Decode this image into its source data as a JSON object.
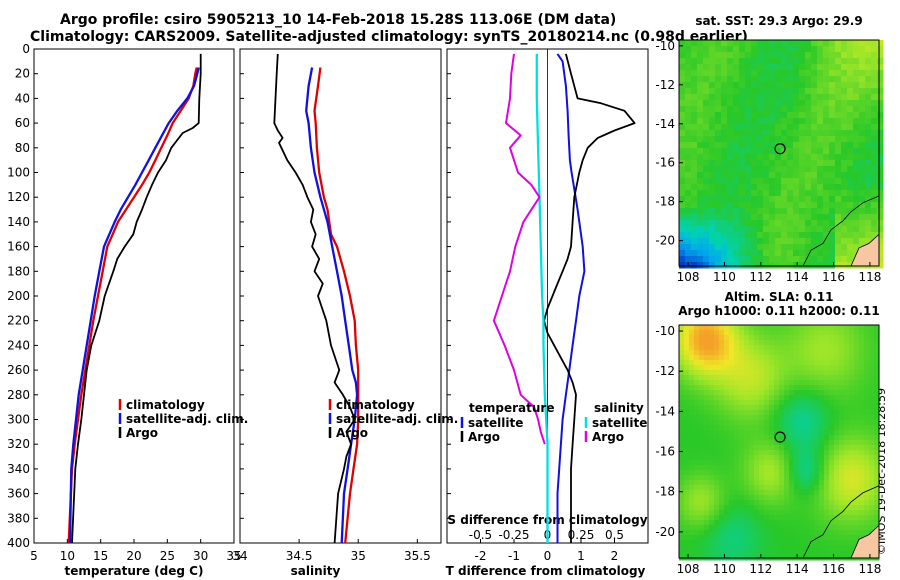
{
  "title": {
    "line1": "Argo profile: csiro 5905213_10 14-Feb-2018 15.28S 113.06E (DM data)",
    "line2": "Climatology: CARS2009. Satellite-adjusted climatology: synTS_20180214.nc (0.98d earlier)"
  },
  "watermark": "©IMOS 19-Dec-2018 18:28:59",
  "colors": {
    "climatology": "#e00000",
    "satellite": "#1010e0",
    "argo": "#000000",
    "s_satellite": "#00e0e0",
    "s_argo": "#e000e0"
  },
  "chart_data": [
    {
      "id": "temperature",
      "type": "line",
      "xlabel": "temperature (deg C)",
      "xlim": [
        5,
        35
      ],
      "xticks": [
        "5",
        "10",
        "15",
        "20",
        "25",
        "30",
        "35"
      ],
      "xtick_values": [
        5,
        10,
        15,
        20,
        25,
        30,
        35
      ],
      "ylim": [
        0,
        400
      ],
      "yticks": [
        "0",
        "20",
        "40",
        "60",
        "80",
        "100",
        "120",
        "140",
        "160",
        "180",
        "200",
        "220",
        "240",
        "260",
        "280",
        "300",
        "320",
        "340",
        "360",
        "380",
        "400"
      ],
      "ytick_values": [
        0,
        20,
        40,
        60,
        80,
        100,
        120,
        140,
        160,
        180,
        200,
        220,
        240,
        260,
        280,
        300,
        320,
        340,
        360,
        380,
        400
      ],
      "legend": {
        "position": "lower-right",
        "entries": [
          "climatology",
          "satellite-adj. clim.",
          "Argo"
        ]
      },
      "series": [
        {
          "name": "climatology",
          "color": "#e00000",
          "x": [
            29.4,
            29.2,
            28.9,
            28.2,
            27.0,
            25.8,
            25.0,
            24.1,
            23.2,
            22.3,
            21.2,
            20.0,
            18.8,
            17.6,
            16.8,
            16.0,
            15.3,
            14.6,
            13.9,
            13.3,
            12.7,
            12.1,
            11.6,
            11.1,
            10.7,
            10.2
          ],
          "y": [
            15,
            20,
            30,
            40,
            50,
            60,
            70,
            80,
            90,
            100,
            110,
            120,
            130,
            140,
            150,
            160,
            180,
            200,
            220,
            240,
            260,
            280,
            300,
            320,
            340,
            400
          ]
        },
        {
          "name": "satellite-adj. clim.",
          "color": "#1010e0",
          "x": [
            29.7,
            29.5,
            29.0,
            28.0,
            26.5,
            25.2,
            24.2,
            23.2,
            22.2,
            21.2,
            20.2,
            19.1,
            18.0,
            17.1,
            16.3,
            15.5,
            14.8,
            14.1,
            13.5,
            12.9,
            12.3,
            11.7,
            11.3,
            10.9,
            10.6,
            10.4
          ],
          "y": [
            15,
            20,
            30,
            40,
            50,
            60,
            70,
            80,
            90,
            100,
            110,
            120,
            130,
            140,
            150,
            160,
            180,
            200,
            220,
            240,
            260,
            280,
            300,
            320,
            340,
            400
          ]
        },
        {
          "name": "Argo",
          "color": "#000000",
          "x": [
            30.0,
            30.0,
            29.8,
            29.7,
            28.8,
            27.3,
            25.6,
            24.8,
            23.6,
            22.7,
            21.9,
            21.2,
            20.4,
            19.9,
            18.6,
            17.5,
            16.9,
            15.6,
            14.8,
            13.6,
            12.9,
            12.5,
            12.1,
            11.6,
            11.2,
            10.7
          ],
          "y": [
            4,
            20,
            40,
            60,
            64,
            68,
            80,
            90,
            100,
            110,
            120,
            130,
            140,
            150,
            160,
            170,
            180,
            200,
            220,
            240,
            260,
            280,
            300,
            320,
            340,
            400
          ]
        }
      ]
    },
    {
      "id": "salinity",
      "type": "line",
      "xlabel": "salinity",
      "xlim": [
        34,
        35.7
      ],
      "xticks": [
        "34",
        "34.5",
        "35",
        "35.5"
      ],
      "xtick_values": [
        34,
        34.5,
        35,
        35.5
      ],
      "ylim": [
        0,
        400
      ],
      "legend": {
        "position": "lower-right",
        "entries": [
          "climatology",
          "satellite-adj. clim.",
          "Argo"
        ]
      },
      "series": [
        {
          "name": "climatology",
          "color": "#e00000",
          "x": [
            34.68,
            34.66,
            34.63,
            34.64,
            34.65,
            34.67,
            34.71,
            34.74,
            34.77,
            34.82,
            34.88,
            34.93,
            34.97,
            34.98,
            35.0,
            35.0,
            35.0,
            34.99,
            34.96,
            34.93,
            34.89
          ],
          "y": [
            15,
            30,
            50,
            60,
            80,
            100,
            120,
            130,
            150,
            160,
            180,
            200,
            220,
            240,
            260,
            280,
            300,
            320,
            340,
            360,
            400
          ]
        },
        {
          "name": "satellite-adj. clim.",
          "color": "#1010e0",
          "x": [
            34.61,
            34.58,
            34.56,
            34.58,
            34.6,
            34.63,
            34.68,
            34.74,
            34.78,
            34.82,
            34.86,
            34.89,
            34.92,
            34.95,
            34.98,
            34.99,
            34.97,
            34.94,
            34.91,
            34.88,
            34.86
          ],
          "y": [
            15,
            30,
            50,
            60,
            80,
            100,
            120,
            140,
            160,
            180,
            200,
            220,
            240,
            260,
            270,
            280,
            300,
            320,
            340,
            360,
            400
          ]
        },
        {
          "name": "Argo",
          "color": "#000000",
          "x": [
            34.32,
            34.31,
            34.3,
            34.29,
            34.32,
            34.36,
            34.33,
            34.36,
            34.4,
            34.47,
            34.53,
            34.57,
            34.62,
            34.6,
            34.64,
            34.61,
            34.67,
            34.63,
            34.7,
            34.66,
            34.73,
            34.77,
            34.84,
            34.8,
            34.87,
            34.93,
            34.97,
            34.9,
            34.94,
            34.9,
            34.88,
            34.83,
            34.8
          ],
          "y": [
            4,
            20,
            40,
            60,
            66,
            72,
            76,
            82,
            90,
            100,
            110,
            120,
            130,
            140,
            150,
            160,
            170,
            180,
            190,
            200,
            220,
            240,
            260,
            270,
            280,
            290,
            300,
            310,
            320,
            330,
            340,
            360,
            400
          ]
        }
      ]
    },
    {
      "id": "difference",
      "type": "line",
      "xlabel": "T difference from climatology",
      "xlim": [
        -3,
        3
      ],
      "xticks": [
        "-2",
        "-1",
        "0",
        "1",
        "2"
      ],
      "xtick_values": [
        -2,
        -1,
        0,
        1,
        2
      ],
      "top_xlabel": "S difference from climatology",
      "top_xticks": [
        "-0.5",
        "-0.25",
        "0",
        "0.25",
        "0.5"
      ],
      "top_xtick_values": [
        -0.5,
        -0.25,
        0,
        0.25,
        0.5
      ],
      "ylim": [
        0,
        400
      ],
      "legend_left": {
        "title": "temperature",
        "entries": [
          "satellite",
          "Argo"
        ]
      },
      "legend_right": {
        "title": "salinity",
        "entries": [
          "satellite",
          "Argo"
        ]
      },
      "series": [
        {
          "name": "T satellite",
          "color": "#1010e0",
          "x": [
            0.3,
            0.45,
            0.55,
            0.6,
            0.63,
            0.67,
            0.72,
            0.78,
            0.84,
            0.9,
            0.95,
            1.0,
            1.05,
            1.1,
            0.95,
            0.85,
            0.75,
            0.65,
            0.55,
            0.45,
            0.4,
            0.35,
            0.3,
            0.3
          ],
          "y": [
            4,
            10,
            30,
            50,
            70,
            90,
            100,
            110,
            120,
            130,
            140,
            150,
            160,
            180,
            200,
            220,
            240,
            260,
            280,
            300,
            320,
            340,
            360,
            400
          ]
        },
        {
          "name": "T Argo",
          "color": "#000000",
          "x": [
            0.55,
            0.7,
            0.9,
            1.6,
            2.3,
            2.6,
            2.0,
            1.5,
            1.2,
            1.05,
            0.95,
            0.8,
            0.75,
            0.7,
            0.6,
            0.45,
            0.3,
            0.15,
            0.0,
            -0.1,
            0.0,
            0.2,
            0.4,
            0.6,
            0.75,
            0.85,
            0.8,
            0.75,
            0.7,
            0.7
          ],
          "y": [
            4,
            20,
            40,
            44,
            50,
            60,
            66,
            72,
            80,
            90,
            100,
            120,
            140,
            160,
            170,
            180,
            190,
            200,
            210,
            220,
            230,
            240,
            250,
            260,
            270,
            280,
            300,
            320,
            340,
            400
          ]
        },
        {
          "name": "S satellite",
          "color": "#00e0e0",
          "x": [
            -0.08,
            -0.08,
            -0.07,
            -0.06,
            -0.05,
            -0.04,
            -0.03,
            -0.03,
            -0.02,
            -0.01,
            0.0,
            0.0,
            0.0,
            0.0
          ],
          "y": [
            4,
            40,
            80,
            120,
            160,
            200,
            220,
            240,
            280,
            300,
            320,
            340,
            360,
            400
          ]
        },
        {
          "name": "S Argo",
          "color": "#e000e0",
          "x": [
            -0.25,
            -0.27,
            -0.28,
            -0.31,
            -0.2,
            -0.28,
            -0.22,
            -0.12,
            -0.06,
            -0.12,
            -0.18,
            -0.24,
            -0.28,
            -0.34,
            -0.4,
            -0.32,
            -0.25,
            -0.2,
            -0.1,
            -0.07,
            -0.05,
            -0.02
          ],
          "y": [
            4,
            20,
            40,
            60,
            70,
            80,
            100,
            110,
            120,
            130,
            140,
            160,
            180,
            200,
            220,
            240,
            260,
            280,
            290,
            300,
            310,
            320
          ]
        }
      ]
    },
    {
      "id": "sst_map",
      "type": "heatmap",
      "title": "sat. SST: 29.3 Argo: 29.9",
      "xlim": [
        107.5,
        118.5
      ],
      "xticks": [
        "108",
        "110",
        "112",
        "114",
        "116",
        "118"
      ],
      "xtick_values": [
        108,
        110,
        112,
        114,
        116,
        118
      ],
      "ylim": [
        -21.3,
        -9.7
      ],
      "yticks": [
        "-10",
        "-12",
        "-14",
        "-16",
        "-18",
        "-20"
      ],
      "ytick_values": [
        -10,
        -12,
        -14,
        -16,
        -18,
        -20
      ],
      "marker": {
        "lon": 113.06,
        "lat": -15.28
      }
    },
    {
      "id": "sla_map",
      "type": "heatmap",
      "title_line1": "Altim. SLA: 0.11",
      "title_line2": "Argo h1000: 0.11 h2000: 0.11",
      "xlim": [
        107.5,
        118.5
      ],
      "xticks": [
        "108",
        "110",
        "112",
        "114",
        "116",
        "118"
      ],
      "xtick_values": [
        108,
        110,
        112,
        114,
        116,
        118
      ],
      "ylim": [
        -21.3,
        -9.7
      ],
      "yticks": [
        "-10",
        "-12",
        "-14",
        "-16",
        "-18",
        "-20"
      ],
      "ytick_values": [
        -10,
        -12,
        -14,
        -16,
        -18,
        -20
      ],
      "marker": {
        "lon": 113.06,
        "lat": -15.28
      }
    }
  ]
}
